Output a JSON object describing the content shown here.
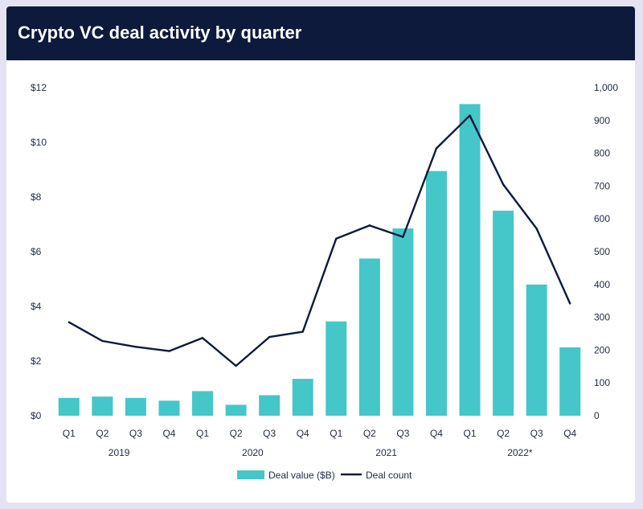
{
  "colors": {
    "header_bg": "#0d1a3b",
    "bar": "#45c6c9",
    "line": "#0d1a3b",
    "frame": "#e4e2f3"
  },
  "chart_data": {
    "type": "bar",
    "title": "Crypto VC deal activity by quarter",
    "categories": [
      "Q1",
      "Q2",
      "Q3",
      "Q4",
      "Q1",
      "Q2",
      "Q3",
      "Q4",
      "Q1",
      "Q2",
      "Q3",
      "Q4",
      "Q1",
      "Q2",
      "Q3",
      "Q4"
    ],
    "years": [
      {
        "label": "2019",
        "start": 0,
        "end": 3
      },
      {
        "label": "2020",
        "start": 4,
        "end": 7
      },
      {
        "label": "2021",
        "start": 8,
        "end": 11
      },
      {
        "label": "2022*",
        "start": 12,
        "end": 15
      }
    ],
    "series": [
      {
        "name": "Deal value ($B)",
        "type": "bar",
        "axis": "left",
        "values": [
          0.65,
          0.7,
          0.65,
          0.55,
          0.9,
          0.4,
          0.75,
          1.35,
          3.45,
          5.75,
          6.85,
          8.95,
          11.4,
          7.5,
          4.8,
          2.5
        ]
      },
      {
        "name": "Deal count",
        "type": "line",
        "axis": "right",
        "values": [
          285,
          228,
          210,
          197,
          237,
          152,
          240,
          256,
          540,
          580,
          545,
          815,
          915,
          705,
          570,
          342
        ]
      }
    ],
    "y_left": {
      "min": 0,
      "max": 12,
      "ticks": [
        0,
        2,
        4,
        6,
        8,
        10,
        12
      ],
      "tick_labels": [
        "$0",
        "$2",
        "$4",
        "$6",
        "$8",
        "$10",
        "$12"
      ]
    },
    "y_right": {
      "min": 0,
      "max": 1000,
      "ticks": [
        0,
        100,
        200,
        300,
        400,
        500,
        600,
        700,
        800,
        900,
        1000
      ],
      "tick_labels": [
        "0",
        "100",
        "200",
        "300",
        "400",
        "500",
        "600",
        "700",
        "800",
        "900",
        "1,000"
      ]
    },
    "grid": false,
    "legend_position": "bottom-center"
  }
}
